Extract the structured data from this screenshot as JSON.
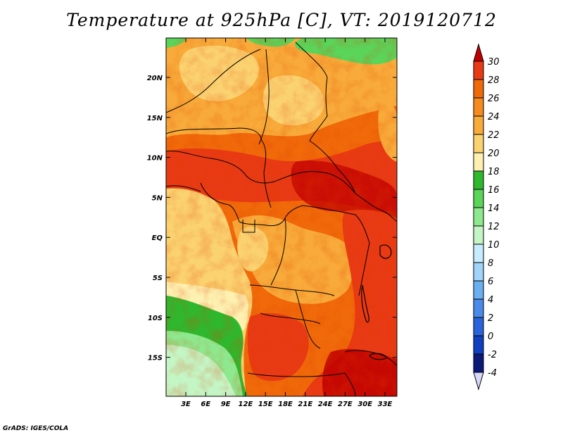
{
  "title": "Temperature at 925hPa [C], VT: 2019120712",
  "credit": "GrADS: IGES/COLA",
  "map": {
    "lat_labels": [
      "20N",
      "15N",
      "10N",
      "5N",
      "EQ",
      "5S",
      "10S",
      "15S"
    ],
    "lon_labels": [
      "3E",
      "6E",
      "9E",
      "12E",
      "15E",
      "18E",
      "21E",
      "24E",
      "27E",
      "30E",
      "33E"
    ]
  },
  "colorbar": {
    "levels": [
      "30",
      "28",
      "26",
      "24",
      "22",
      "20",
      "18",
      "16",
      "14",
      "12",
      "10",
      "8",
      "6",
      "4",
      "2",
      "0",
      "-2",
      "-4"
    ],
    "colors": [
      "#c00000",
      "#e83a14",
      "#f06a0a",
      "#f58a1f",
      "#f8ab3a",
      "#fbd270",
      "#fdf0b0",
      "#2eb82e",
      "#5ad55a",
      "#8ee88e",
      "#c4f5c4",
      "#c8ecff",
      "#a0d4f8",
      "#6aaff0",
      "#4a8ae8",
      "#2a64dc",
      "#1040c0",
      "#0a1a78",
      "#001060"
    ]
  }
}
